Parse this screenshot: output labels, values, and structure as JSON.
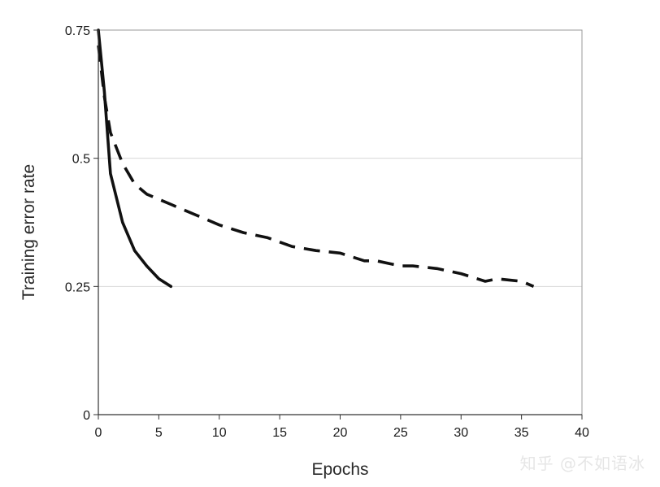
{
  "chart_data": {
    "type": "line",
    "title": "",
    "xlabel": "Epochs",
    "ylabel": "Training error rate",
    "xlim": [
      0,
      40
    ],
    "ylim": [
      0,
      0.75
    ],
    "x_ticks": [
      "0",
      "5",
      "10",
      "15",
      "20",
      "25",
      "30",
      "35",
      "40"
    ],
    "y_ticks": [
      "0",
      "0.25",
      "0.5",
      "0.75"
    ],
    "grid": {
      "horizontal": true,
      "vertical": false
    },
    "legend": "none",
    "series": [
      {
        "style": "solid",
        "color": "#111111",
        "x": [
          0,
          0.5,
          1,
          2,
          3,
          4,
          5,
          6
        ],
        "y": [
          0.75,
          0.63,
          0.47,
          0.375,
          0.32,
          0.29,
          0.265,
          0.25
        ]
      },
      {
        "style": "dashed",
        "color": "#111111",
        "x": [
          0,
          0.5,
          1,
          2,
          3,
          4,
          5,
          6,
          7,
          8,
          9,
          10,
          12,
          14,
          16,
          18,
          20,
          22,
          23,
          25,
          26,
          28,
          30,
          32,
          33,
          35,
          36
        ],
        "y": [
          0.72,
          0.62,
          0.55,
          0.49,
          0.45,
          0.43,
          0.42,
          0.41,
          0.4,
          0.39,
          0.38,
          0.37,
          0.355,
          0.345,
          0.328,
          0.32,
          0.315,
          0.3,
          0.3,
          0.29,
          0.29,
          0.285,
          0.275,
          0.26,
          0.265,
          0.26,
          0.25
        ]
      }
    ]
  },
  "watermark": "知乎 @不如语冰"
}
